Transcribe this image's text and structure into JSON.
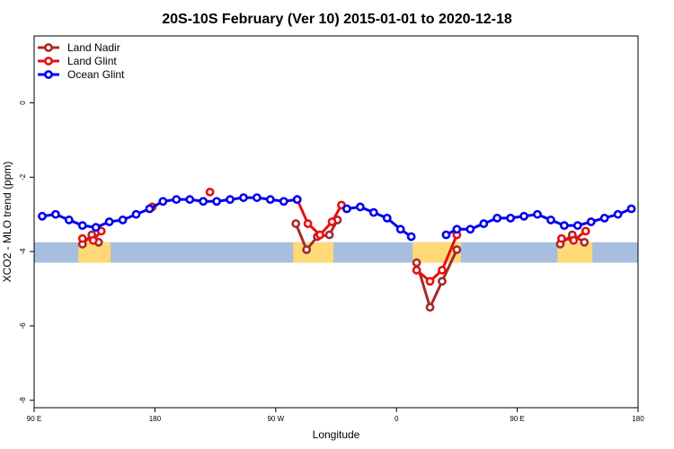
{
  "chart_data": {
    "type": "line",
    "title": "20S-10S February (Ver 10)   2015-01-01 to 2020-12-18",
    "xlabel": "Longitude",
    "ylabel": "XCO2 - MLO trend (ppm)",
    "xlim": [
      90,
      540
    ],
    "ylim": [
      -8.2,
      1.8
    ],
    "x_ticks": [
      {
        "value": 90,
        "label": "90 E"
      },
      {
        "value": 180,
        "label": "180"
      },
      {
        "value": 270,
        "label": "90 W"
      },
      {
        "value": 360,
        "label": "0"
      },
      {
        "value": 450,
        "label": "90 E"
      },
      {
        "value": 540,
        "label": "180"
      }
    ],
    "y_ticks": [
      {
        "value": 0,
        "label": "0"
      },
      {
        "value": -2,
        "label": "-2"
      },
      {
        "value": -4,
        "label": "-4"
      },
      {
        "value": -6,
        "label": "-6"
      },
      {
        "value": -8,
        "label": "-8"
      }
    ],
    "legend_position": "top-left",
    "band": {
      "ymin": -4.3,
      "ymax": -3.75,
      "ocean_color": "#a7bedf",
      "land_color": "#ffd978"
    },
    "land_segments": [
      [
        123,
        147
      ],
      [
        283,
        313
      ],
      [
        372,
        408
      ],
      [
        480,
        506
      ]
    ],
    "series": [
      {
        "name": "Land Nadir",
        "color": "#a52a2a",
        "segments": [
          [
            [
              126,
              -3.8
            ],
            [
              133,
              -3.55
            ],
            [
              138,
              -3.75
            ]
          ],
          [
            [
              285,
              -3.25
            ],
            [
              293,
              -3.95
            ],
            [
              301,
              -3.6
            ],
            [
              310,
              -3.55
            ],
            [
              316,
              -3.15
            ]
          ],
          [
            [
              375,
              -4.3
            ],
            [
              385,
              -5.5
            ],
            [
              394,
              -4.8
            ],
            [
              405,
              -3.95
            ]
          ],
          [
            [
              482,
              -3.8
            ],
            [
              491,
              -3.55
            ],
            [
              500,
              -3.75
            ]
          ]
        ]
      },
      {
        "name": "Land Glint",
        "color": "#e81010",
        "segments": [
          [
            [
              126,
              -3.65
            ],
            [
              134,
              -3.7
            ],
            [
              140,
              -3.45
            ]
          ],
          [
            [
              178,
              -2.8
            ]
          ],
          [
            [
              221,
              -2.4
            ]
          ],
          [
            [
              286,
              -2.6
            ],
            [
              294,
              -3.25
            ],
            [
              303,
              -3.55
            ],
            [
              312,
              -3.2
            ],
            [
              319,
              -2.75
            ]
          ],
          [
            [
              375,
              -4.5
            ],
            [
              385,
              -4.8
            ],
            [
              394,
              -4.5
            ],
            [
              405,
              -3.55
            ]
          ],
          [
            [
              483,
              -3.65
            ],
            [
              492,
              -3.7
            ],
            [
              501,
              -3.45
            ]
          ]
        ]
      },
      {
        "name": "Ocean Glint",
        "color": "#0000ee",
        "segments": [
          [
            [
              96,
              -3.05
            ],
            [
              106,
              -3.0
            ],
            [
              116,
              -3.15
            ],
            [
              126,
              -3.3
            ],
            [
              136,
              -3.35
            ],
            [
              146,
              -3.2
            ],
            [
              156,
              -3.15
            ],
            [
              166,
              -3.0
            ],
            [
              176,
              -2.85
            ],
            [
              186,
              -2.65
            ],
            [
              196,
              -2.6
            ],
            [
              206,
              -2.6
            ],
            [
              216,
              -2.65
            ],
            [
              226,
              -2.65
            ],
            [
              236,
              -2.6
            ],
            [
              246,
              -2.55
            ],
            [
              256,
              -2.55
            ],
            [
              266,
              -2.6
            ],
            [
              276,
              -2.65
            ],
            [
              286,
              -2.6
            ]
          ],
          [
            [
              323,
              -2.85
            ],
            [
              333,
              -2.8
            ],
            [
              343,
              -2.95
            ],
            [
              353,
              -3.1
            ],
            [
              363,
              -3.4
            ],
            [
              371,
              -3.6
            ]
          ],
          [
            [
              397,
              -3.55
            ],
            [
              405,
              -3.4
            ],
            [
              415,
              -3.4
            ],
            [
              425,
              -3.25
            ],
            [
              435,
              -3.1
            ],
            [
              445,
              -3.1
            ],
            [
              455,
              -3.05
            ],
            [
              465,
              -3.0
            ],
            [
              475,
              -3.15
            ],
            [
              485,
              -3.3
            ],
            [
              495,
              -3.3
            ],
            [
              505,
              -3.2
            ],
            [
              515,
              -3.1
            ],
            [
              525,
              -3.0
            ],
            [
              535,
              -2.85
            ]
          ]
        ]
      }
    ]
  }
}
